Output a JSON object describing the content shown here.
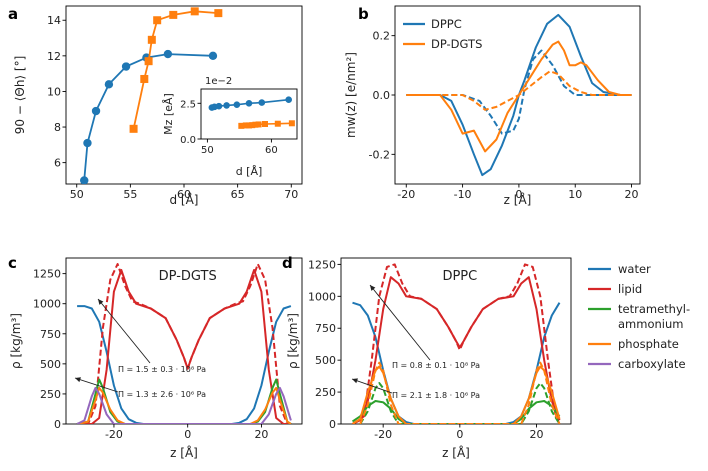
{
  "colors": {
    "blue": "#1f77b4",
    "orange": "#ff7f0e",
    "red": "#d62728",
    "green": "#2ca02c",
    "purple": "#9467bd"
  },
  "chart_data": [
    {
      "panel": "a",
      "type": "scatter",
      "xlabel": "d [Å]",
      "ylabel": "90 − ⟨Θh⟩ [°]",
      "xlim": [
        49,
        71
      ],
      "ylim": [
        4.8,
        14.8
      ],
      "xticks": [
        50,
        55,
        60,
        65,
        70
      ],
      "yticks": [
        6,
        8,
        10,
        12,
        14
      ],
      "series": [
        {
          "name": "DPPC",
          "color": "blue",
          "x": [
            50.7,
            51.0,
            51.8,
            53.0,
            54.6,
            56.5,
            58.5,
            62.7
          ],
          "y": [
            5.0,
            7.1,
            8.9,
            10.4,
            11.4,
            11.9,
            12.1,
            12.0
          ]
        },
        {
          "name": "DP-DGTS",
          "color": "orange",
          "x": [
            55.3,
            56.3,
            56.7,
            57.0,
            57.5,
            59.0,
            61.0,
            63.2
          ],
          "y": [
            7.9,
            10.7,
            11.7,
            12.9,
            14.0,
            14.3,
            14.5,
            14.4
          ]
        }
      ],
      "inset": {
        "xlabel": "d [Å]",
        "ylabel": "Mz [eÅ]",
        "scale_note": "1e−2",
        "xlim": [
          49,
          64
        ],
        "ylim": [
          0,
          3.5
        ],
        "xticks": [
          50,
          60
        ],
        "yticks": [
          0.0,
          2.5
        ],
        "series": [
          {
            "name": "DPPC",
            "color": "blue",
            "x": [
              50.7,
              51.1,
              51.8,
              53.0,
              54.6,
              56.5,
              58.5,
              62.7
            ],
            "y": [
              2.2,
              2.25,
              2.3,
              2.35,
              2.4,
              2.5,
              2.55,
              2.75
            ]
          },
          {
            "name": "DP-DGTS",
            "color": "orange",
            "x": [
              55.3,
              56.0,
              56.5,
              57.0,
              57.5,
              58.0,
              59.0,
              61.0,
              63.2
            ],
            "y": [
              0.92,
              0.95,
              0.95,
              0.97,
              1.0,
              1.02,
              1.05,
              1.07,
              1.1
            ]
          }
        ]
      }
    },
    {
      "panel": "b",
      "type": "line",
      "xlabel": "z [Å]",
      "ylabel": "mw(z) [e/nm²]",
      "xlim": [
        -22,
        21.5
      ],
      "ylim": [
        -0.3,
        0.3
      ],
      "xticks": [
        -20,
        -10,
        0,
        10,
        20
      ],
      "yticks": [
        -0.2,
        0.0,
        0.2
      ],
      "legend": [
        "DPPC",
        "DP-DGTS"
      ],
      "legend_placement": "top-left",
      "series": [
        {
          "name": "DPPC",
          "color": "blue",
          "style": "solid",
          "x": [
            -20,
            -14,
            -12,
            -10,
            -8,
            -6.5,
            -5,
            -3,
            -1,
            0,
            1,
            3,
            5,
            7,
            9,
            11,
            13,
            15,
            18,
            20
          ],
          "y": [
            0,
            0,
            -0.02,
            -0.1,
            -0.2,
            -0.27,
            -0.25,
            -0.17,
            -0.07,
            0,
            0.05,
            0.16,
            0.24,
            0.27,
            0.23,
            0.13,
            0.04,
            0.01,
            0,
            0
          ]
        },
        {
          "name": "DPPC",
          "color": "blue",
          "style": "dashed",
          "x": [
            -20,
            -10,
            -7,
            -5,
            -3,
            -1,
            0,
            1,
            2.5,
            4,
            6,
            8,
            10,
            20
          ],
          "y": [
            0,
            0,
            -0.02,
            -0.07,
            -0.13,
            -0.12,
            -0.08,
            0.02,
            0.12,
            0.15,
            0.1,
            0.03,
            0,
            0
          ]
        },
        {
          "name": "DP-DGTS",
          "color": "orange",
          "style": "solid",
          "x": [
            -20,
            -14,
            -12,
            -10,
            -8,
            -6,
            -4,
            -2,
            0,
            2,
            4,
            6,
            7,
            8,
            9,
            10,
            11,
            12,
            14,
            16,
            18,
            20
          ],
          "y": [
            0,
            0,
            -0.05,
            -0.13,
            -0.12,
            -0.19,
            -0.15,
            -0.06,
            0,
            0.06,
            0.12,
            0.17,
            0.18,
            0.15,
            0.1,
            0.1,
            0.11,
            0.1,
            0.05,
            0.01,
            0,
            0
          ]
        },
        {
          "name": "DP-DGTS",
          "color": "orange",
          "style": "dashed",
          "x": [
            -20,
            -10,
            -8,
            -6,
            -4,
            -2,
            0,
            2,
            4,
            5.5,
            7,
            9,
            11,
            13,
            20
          ],
          "y": [
            0,
            0,
            -0.02,
            -0.05,
            -0.04,
            -0.02,
            0,
            0.03,
            0.06,
            0.08,
            0.07,
            0.03,
            0.01,
            0,
            0
          ]
        }
      ]
    },
    {
      "panel": "c",
      "type": "line",
      "title": "DP-DGTS",
      "xlabel": "z [Å]",
      "ylabel": "ρ [kg/m³]",
      "xlim": [
        -33,
        31
      ],
      "ylim": [
        0,
        1380
      ],
      "xticks": [
        -20,
        0,
        20
      ],
      "yticks": [
        0,
        250,
        500,
        750,
        1000,
        1250
      ],
      "annotations": [
        "Π = 1.5 ± 0.3 · 10⁸ Pa",
        "Π = 1.3 ± 2.6 · 10⁶ Pa"
      ],
      "series": [
        {
          "name": "water",
          "color": "blue",
          "style": "solid",
          "x": [
            -30,
            -28,
            -26,
            -24,
            -22,
            -20,
            -18,
            -16,
            -14,
            -12,
            12,
            14,
            16,
            18,
            20,
            22,
            24,
            26,
            28
          ],
          "y": [
            980,
            980,
            960,
            850,
            600,
            320,
            130,
            40,
            10,
            0,
            0,
            10,
            40,
            130,
            320,
            600,
            850,
            960,
            980
          ]
        },
        {
          "name": "lipid",
          "color": "red",
          "style": "solid",
          "x": [
            -30,
            -26,
            -24,
            -22,
            -20,
            -18,
            -16,
            -14,
            -10,
            -6,
            -3,
            -1,
            0,
            1,
            3,
            6,
            10,
            14,
            16,
            18,
            20,
            22,
            24,
            26,
            28
          ],
          "y": [
            0,
            0,
            50,
            450,
            1100,
            1280,
            1100,
            1000,
            960,
            880,
            700,
            550,
            460,
            550,
            700,
            880,
            960,
            1000,
            1100,
            1280,
            1100,
            450,
            50,
            0,
            0
          ]
        },
        {
          "name": "lipid",
          "color": "red",
          "style": "dashed",
          "x": [
            -30,
            -27,
            -25,
            -23,
            -21,
            -19,
            -17,
            -15,
            -13,
            -10,
            -6,
            -3,
            -1,
            0,
            1,
            3,
            6,
            10,
            13,
            15,
            17,
            19,
            21,
            23,
            25,
            27,
            28
          ],
          "y": [
            0,
            0,
            150,
            800,
            1200,
            1330,
            1150,
            1020,
            1000,
            960,
            880,
            700,
            550,
            460,
            550,
            700,
            880,
            960,
            1000,
            1020,
            1150,
            1330,
            1200,
            800,
            150,
            0,
            0
          ]
        },
        {
          "name": "tetramethyl-ammonium",
          "color": "green",
          "style": "solid",
          "x": [
            -30,
            -27,
            -25,
            -24,
            -23,
            -21,
            -19,
            -17,
            17,
            19,
            21,
            23,
            24,
            25,
            27,
            28
          ],
          "y": [
            0,
            20,
            250,
            370,
            300,
            100,
            20,
            0,
            0,
            20,
            100,
            300,
            370,
            250,
            20,
            0
          ]
        },
        {
          "name": "phosphate",
          "color": "orange",
          "style": "solid",
          "x": [
            -30,
            -27,
            -25,
            -24,
            -23,
            -21,
            -19,
            -17,
            17,
            19,
            21,
            23,
            24,
            25,
            27,
            28
          ],
          "y": [
            0,
            20,
            200,
            300,
            260,
            120,
            30,
            0,
            0,
            30,
            120,
            260,
            300,
            200,
            20,
            0
          ]
        },
        {
          "name": "carboxylate",
          "color": "purple",
          "style": "solid",
          "x": [
            -30,
            -28,
            -26,
            -25,
            -24,
            -22,
            -20,
            20,
            22,
            24,
            25,
            26,
            28
          ],
          "y": [
            0,
            30,
            230,
            300,
            250,
            80,
            0,
            0,
            80,
            250,
            300,
            230,
            30
          ]
        }
      ]
    },
    {
      "panel": "d",
      "type": "line",
      "title": "DPPC",
      "xlabel": "z [Å]",
      "ylabel": "ρ [kg/m³]",
      "xlim": [
        -31,
        29
      ],
      "ylim": [
        0,
        1300
      ],
      "xticks": [
        -20,
        0,
        20
      ],
      "yticks": [
        0,
        250,
        500,
        750,
        1000,
        1250
      ],
      "annotations": [
        "Π = 0.8 ± 0.1 · 10⁸ Pa",
        "Π = 2.1 ± 1.8 · 10⁶ Pa"
      ],
      "series": [
        {
          "name": "water",
          "color": "blue",
          "style": "solid",
          "x": [
            -28,
            -26,
            -24,
            -22,
            -20,
            -18,
            -16,
            -14,
            -12,
            -10,
            10,
            12,
            14,
            16,
            18,
            20,
            22,
            24,
            26
          ],
          "y": [
            950,
            930,
            850,
            680,
            420,
            200,
            60,
            15,
            0,
            0,
            0,
            0,
            15,
            60,
            200,
            420,
            680,
            850,
            950
          ]
        },
        {
          "name": "lipid",
          "color": "red",
          "style": "solid",
          "x": [
            -28,
            -26,
            -24,
            -22,
            -20,
            -18,
            -16,
            -14,
            -10,
            -6,
            -3,
            -1,
            0,
            1,
            3,
            6,
            10,
            14,
            16,
            18,
            20,
            22,
            24,
            26
          ],
          "y": [
            0,
            30,
            180,
            500,
            900,
            1150,
            1100,
            1000,
            980,
            900,
            760,
            650,
            600,
            650,
            760,
            900,
            980,
            1000,
            1100,
            1150,
            900,
            500,
            180,
            30
          ]
        },
        {
          "name": "lipid",
          "color": "red",
          "style": "dashed",
          "x": [
            -28,
            -25,
            -23,
            -21,
            -19,
            -17,
            -15,
            -13,
            -10,
            -6,
            -3,
            -1,
            0,
            1,
            3,
            6,
            10,
            13,
            15,
            17,
            19,
            21,
            23,
            25,
            26
          ],
          "y": [
            0,
            60,
            500,
            1000,
            1230,
            1250,
            1100,
            1000,
            980,
            900,
            760,
            650,
            580,
            650,
            760,
            900,
            980,
            1000,
            1100,
            1250,
            1230,
            1000,
            500,
            60,
            0
          ]
        },
        {
          "name": "tetramethyl-ammonium",
          "color": "green",
          "style": "solid",
          "x": [
            -28,
            -26,
            -24,
            -22,
            -20,
            -18,
            -16,
            -14,
            14,
            16,
            18,
            20,
            22,
            24,
            26
          ],
          "y": [
            20,
            60,
            140,
            180,
            170,
            120,
            40,
            0,
            0,
            40,
            120,
            170,
            180,
            140,
            60
          ]
        },
        {
          "name": "phosphate",
          "color": "orange",
          "style": "solid",
          "x": [
            -28,
            -26,
            -24,
            -22,
            -21,
            -20,
            -18,
            -16,
            -14,
            14,
            16,
            18,
            20,
            21,
            22,
            24,
            26
          ],
          "y": [
            0,
            40,
            250,
            420,
            450,
            400,
            200,
            60,
            0,
            0,
            60,
            200,
            400,
            450,
            420,
            250,
            40
          ]
        },
        {
          "name": "tetramethyl-ammonium",
          "color": "green",
          "style": "dashed",
          "x": [
            -26,
            -24,
            -22,
            -21,
            -20,
            -18,
            -16,
            16,
            18,
            20,
            21,
            22,
            24,
            26
          ],
          "y": [
            0,
            100,
            280,
            320,
            280,
            100,
            0,
            0,
            100,
            280,
            320,
            280,
            100,
            0
          ]
        },
        {
          "name": "phosphate",
          "color": "orange",
          "style": "dashed",
          "x": [
            -26,
            -24,
            -22,
            -21,
            -20,
            -18,
            -16,
            16,
            18,
            20,
            21,
            22,
            24,
            26
          ],
          "y": [
            0,
            150,
            420,
            480,
            420,
            150,
            0,
            0,
            150,
            420,
            480,
            420,
            150,
            0
          ]
        }
      ]
    }
  ],
  "legend": {
    "entries": [
      {
        "label": "water",
        "color": "blue"
      },
      {
        "label": "lipid",
        "color": "red"
      },
      {
        "label": "tetramethyl-\nammonium",
        "color": "green"
      },
      {
        "label": "phosphate",
        "color": "orange"
      },
      {
        "label": "carboxylate",
        "color": "purple"
      }
    ]
  },
  "panel_labels": [
    "a",
    "b",
    "c",
    "d"
  ]
}
